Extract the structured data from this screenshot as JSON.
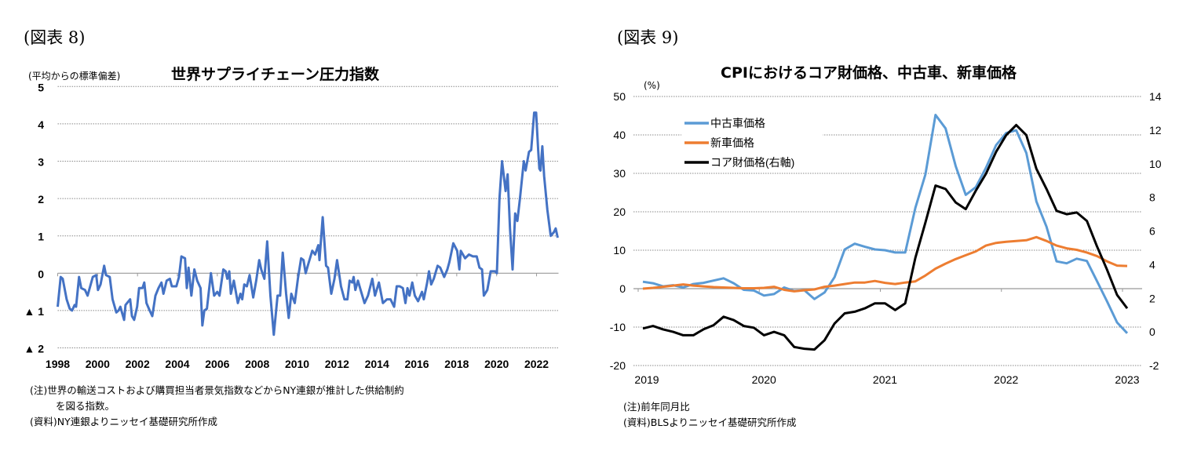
{
  "left": {
    "figure_label": "(図表 8)",
    "title": "世界サプライチェーン圧力指数",
    "unit": "(平均からの標準偏差)",
    "notes": [
      "(注)世界の輸送コストおよび購買担当者景気指数などからNY連銀が推計した供給制約",
      "を図る指数。",
      "(資料)NY連銀よりニッセイ基礎研究所作成"
    ]
  },
  "right": {
    "figure_label": "(図表 9)",
    "title": "CPIにおけるコア財価格、中古車、新車価格",
    "unit": "(%)",
    "notes": [
      "(注)前年同月比",
      "(資料)BLSよりニッセイ基礎研究所作成"
    ]
  },
  "chart_data": [
    {
      "type": "line",
      "title": "世界サプライチェーン圧力指数",
      "ylabel": "(平均からの標準偏差)",
      "ylim": [
        -2,
        5
      ],
      "yticks": [
        5,
        4,
        3,
        2,
        1,
        0,
        -1,
        -2
      ],
      "ytick_labels": [
        "5",
        "4",
        "3",
        "2",
        "1",
        "0",
        "▲ 1",
        "▲ 2"
      ],
      "xlim": [
        1998,
        2023.1
      ],
      "xticks": [
        1998,
        2000,
        2002,
        2004,
        2006,
        2008,
        2010,
        2012,
        2014,
        2016,
        2018,
        2020,
        2022
      ],
      "grid": true,
      "color": "#4472C4",
      "series": [
        {
          "points": [
            [
              1998.0,
              -0.9
            ],
            [
              1998.15,
              -0.1
            ],
            [
              1998.25,
              -0.15
            ],
            [
              1998.45,
              -0.7
            ],
            [
              1998.6,
              -0.95
            ],
            [
              1998.72,
              -1.0
            ],
            [
              1998.85,
              -0.85
            ],
            [
              1998.92,
              -0.9
            ],
            [
              1999.07,
              -0.1
            ],
            [
              1999.18,
              -0.4
            ],
            [
              1999.37,
              -0.45
            ],
            [
              1999.5,
              -0.6
            ],
            [
              1999.76,
              -0.1
            ],
            [
              1999.93,
              -0.05
            ],
            [
              2000.02,
              -0.45
            ],
            [
              2000.15,
              -0.3
            ],
            [
              2000.33,
              0.2
            ],
            [
              2000.42,
              -0.05
            ],
            [
              2000.61,
              -0.1
            ],
            [
              2000.75,
              -0.7
            ],
            [
              2000.94,
              -1.05
            ],
            [
              2001.05,
              -1.0
            ],
            [
              2001.14,
              -0.9
            ],
            [
              2001.33,
              -1.25
            ],
            [
              2001.4,
              -0.85
            ],
            [
              2001.63,
              -0.7
            ],
            [
              2001.72,
              -1.15
            ],
            [
              2001.83,
              -1.25
            ],
            [
              2001.98,
              -0.9
            ],
            [
              2002.08,
              -0.4
            ],
            [
              2002.25,
              -0.4
            ],
            [
              2002.34,
              -0.25
            ],
            [
              2002.45,
              -0.8
            ],
            [
              2002.61,
              -1.0
            ],
            [
              2002.74,
              -1.15
            ],
            [
              2002.9,
              -0.6
            ],
            [
              2003.05,
              -0.4
            ],
            [
              2003.2,
              -0.25
            ],
            [
              2003.3,
              -0.55
            ],
            [
              2003.46,
              -0.2
            ],
            [
              2003.62,
              -0.15
            ],
            [
              2003.72,
              -0.35
            ],
            [
              2003.95,
              -0.35
            ],
            [
              2004.08,
              -0.1
            ],
            [
              2004.2,
              0.45
            ],
            [
              2004.38,
              0.4
            ],
            [
              2004.47,
              -0.4
            ],
            [
              2004.56,
              0.15
            ],
            [
              2004.7,
              -0.6
            ],
            [
              2004.85,
              0.1
            ],
            [
              2004.99,
              -0.2
            ],
            [
              2005.16,
              -0.4
            ],
            [
              2005.25,
              -1.4
            ],
            [
              2005.35,
              -1.0
            ],
            [
              2005.48,
              -0.95
            ],
            [
              2005.68,
              0.0
            ],
            [
              2005.84,
              -0.6
            ],
            [
              2006.0,
              -0.5
            ],
            [
              2006.11,
              -0.6
            ],
            [
              2006.3,
              0.1
            ],
            [
              2006.42,
              0.05
            ],
            [
              2006.5,
              -0.15
            ],
            [
              2006.6,
              0.05
            ],
            [
              2006.68,
              -0.55
            ],
            [
              2006.83,
              -0.2
            ],
            [
              2007.03,
              -0.8
            ],
            [
              2007.16,
              -0.55
            ],
            [
              2007.25,
              -0.7
            ],
            [
              2007.35,
              -0.3
            ],
            [
              2007.48,
              -0.35
            ],
            [
              2007.62,
              -0.05
            ],
            [
              2007.8,
              -0.65
            ],
            [
              2007.95,
              -0.2
            ],
            [
              2008.1,
              0.35
            ],
            [
              2008.2,
              0.1
            ],
            [
              2008.36,
              -0.15
            ],
            [
              2008.5,
              0.85
            ],
            [
              2008.66,
              -0.6
            ],
            [
              2008.83,
              -1.65
            ],
            [
              2009.02,
              -0.6
            ],
            [
              2009.15,
              -0.6
            ],
            [
              2009.28,
              0.55
            ],
            [
              2009.45,
              -0.55
            ],
            [
              2009.58,
              -1.2
            ],
            [
              2009.71,
              -0.55
            ],
            [
              2009.88,
              -0.8
            ],
            [
              2010.04,
              -0.15
            ],
            [
              2010.2,
              0.4
            ],
            [
              2010.32,
              0.35
            ],
            [
              2010.43,
              0.0
            ],
            [
              2010.56,
              0.25
            ],
            [
              2010.76,
              0.6
            ],
            [
              2010.9,
              0.5
            ],
            [
              2011.06,
              0.75
            ],
            [
              2011.12,
              0.35
            ],
            [
              2011.28,
              1.5
            ],
            [
              2011.45,
              0.2
            ],
            [
              2011.55,
              0.15
            ],
            [
              2011.71,
              -0.55
            ],
            [
              2011.87,
              -0.15
            ],
            [
              2012.0,
              0.35
            ],
            [
              2012.2,
              -0.35
            ],
            [
              2012.37,
              -0.7
            ],
            [
              2012.52,
              -0.7
            ],
            [
              2012.63,
              -0.2
            ],
            [
              2012.76,
              -0.25
            ],
            [
              2012.83,
              -0.1
            ],
            [
              2012.92,
              -0.45
            ],
            [
              2013.05,
              -0.2
            ],
            [
              2013.18,
              -0.45
            ],
            [
              2013.38,
              -0.8
            ],
            [
              2013.55,
              -0.6
            ],
            [
              2013.77,
              -0.15
            ],
            [
              2013.9,
              -0.6
            ],
            [
              2014.1,
              -0.25
            ],
            [
              2014.3,
              -0.8
            ],
            [
              2014.5,
              -0.7
            ],
            [
              2014.68,
              -0.7
            ],
            [
              2014.86,
              -0.9
            ],
            [
              2014.99,
              -0.35
            ],
            [
              2015.14,
              -0.35
            ],
            [
              2015.3,
              -0.4
            ],
            [
              2015.43,
              -0.8
            ],
            [
              2015.53,
              -0.4
            ],
            [
              2015.63,
              -0.6
            ],
            [
              2015.77,
              -0.25
            ],
            [
              2015.9,
              -0.6
            ],
            [
              2016.06,
              -0.75
            ],
            [
              2016.26,
              -0.5
            ],
            [
              2016.35,
              -0.7
            ],
            [
              2016.52,
              -0.25
            ],
            [
              2016.61,
              0.05
            ],
            [
              2016.72,
              -0.3
            ],
            [
              2016.85,
              -0.15
            ],
            [
              2017.04,
              0.2
            ],
            [
              2017.17,
              0.15
            ],
            [
              2017.37,
              -0.1
            ],
            [
              2017.53,
              0.1
            ],
            [
              2017.63,
              0.3
            ],
            [
              2017.83,
              0.8
            ],
            [
              2018.02,
              0.6
            ],
            [
              2018.13,
              0.1
            ],
            [
              2018.2,
              0.6
            ],
            [
              2018.42,
              0.4
            ],
            [
              2018.61,
              0.5
            ],
            [
              2018.81,
              0.45
            ],
            [
              2019.0,
              0.45
            ],
            [
              2019.14,
              0.15
            ],
            [
              2019.27,
              0.1
            ],
            [
              2019.36,
              -0.6
            ],
            [
              2019.53,
              -0.45
            ],
            [
              2019.7,
              0.05
            ],
            [
              2019.92,
              0.05
            ],
            [
              2020.01,
              0.0
            ],
            [
              2020.14,
              2.0
            ],
            [
              2020.27,
              3.0
            ],
            [
              2020.45,
              2.2
            ],
            [
              2020.55,
              2.65
            ],
            [
              2020.67,
              1.2
            ],
            [
              2020.8,
              0.1
            ],
            [
              2020.93,
              1.6
            ],
            [
              2021.04,
              1.4
            ],
            [
              2021.17,
              2.0
            ],
            [
              2021.36,
              3.0
            ],
            [
              2021.45,
              2.75
            ],
            [
              2021.62,
              3.25
            ],
            [
              2021.73,
              3.3
            ],
            [
              2021.88,
              4.3
            ],
            [
              2021.98,
              4.3
            ],
            [
              2022.08,
              3.3
            ],
            [
              2022.14,
              2.8
            ],
            [
              2022.2,
              2.75
            ],
            [
              2022.29,
              3.4
            ],
            [
              2022.38,
              2.6
            ],
            [
              2022.54,
              1.7
            ],
            [
              2022.71,
              1.0
            ],
            [
              2022.87,
              1.1
            ],
            [
              2022.96,
              1.2
            ],
            [
              2023.06,
              0.95
            ]
          ]
        }
      ]
    },
    {
      "type": "line",
      "title": "CPIにおけるコア財価格、中古車、新車価格",
      "ylabel": "(%)",
      "ylim": [
        -20,
        50
      ],
      "yticks": [
        50,
        40,
        30,
        20,
        10,
        0,
        -10,
        -20
      ],
      "y2lim": [
        -2,
        14
      ],
      "y2ticks": [
        14,
        12,
        10,
        8,
        6,
        4,
        2,
        0,
        -2
      ],
      "xticks": [
        "2019",
        "2020",
        "2021",
        "2022",
        "2023"
      ],
      "grid": true,
      "legend": "top-left",
      "x": [
        "2019-01",
        "2019-02",
        "2019-03",
        "2019-04",
        "2019-05",
        "2019-06",
        "2019-07",
        "2019-08",
        "2019-09",
        "2019-10",
        "2019-11",
        "2019-12",
        "2020-01",
        "2020-02",
        "2020-03",
        "2020-04",
        "2020-05",
        "2020-06",
        "2020-07",
        "2020-08",
        "2020-09",
        "2020-10",
        "2020-11",
        "2020-12",
        "2021-01",
        "2021-02",
        "2021-03",
        "2021-04",
        "2021-05",
        "2021-06",
        "2021-07",
        "2021-08",
        "2021-09",
        "2021-10",
        "2021-11",
        "2021-12",
        "2022-01",
        "2022-02",
        "2022-03",
        "2022-04",
        "2022-05",
        "2022-06",
        "2022-07",
        "2022-08",
        "2022-09",
        "2022-10",
        "2022-11",
        "2022-12",
        "2023-01"
      ],
      "series": [
        {
          "name": "中古車価格",
          "axis": "left",
          "color": "#5B9BD5",
          "values": [
            1.8,
            1.4,
            0.6,
            0.9,
            0.3,
            1.2,
            1.5,
            2.1,
            2.7,
            1.4,
            -0.3,
            -0.5,
            -1.8,
            -1.4,
            0.3,
            -0.6,
            -0.4,
            -2.7,
            -1.0,
            3.0,
            10.2,
            11.7,
            10.9,
            10.2,
            10.0,
            9.4,
            9.4,
            21.0,
            29.7,
            45.2,
            41.7,
            31.9,
            24.4,
            26.4,
            31.4,
            37.3,
            40.5,
            41.2,
            35.3,
            22.7,
            16.1,
            7.1,
            6.6,
            7.8,
            7.2,
            2.0,
            -3.3,
            -8.8,
            -11.6
          ]
        },
        {
          "name": "新車価格",
          "axis": "left",
          "color": "#ED7D31",
          "values": [
            0.0,
            0.2,
            0.5,
            0.8,
            1.1,
            0.8,
            0.6,
            0.4,
            0.3,
            0.2,
            0.1,
            0.1,
            0.2,
            0.5,
            -0.3,
            -0.7,
            -0.4,
            -0.2,
            0.5,
            0.8,
            1.2,
            1.6,
            1.6,
            2.0,
            1.5,
            1.2,
            1.6,
            1.9,
            3.4,
            5.2,
            6.5,
            7.7,
            8.7,
            9.7,
            11.2,
            11.9,
            12.2,
            12.4,
            12.6,
            13.4,
            12.4,
            11.2,
            10.5,
            10.1,
            9.4,
            8.5,
            7.1,
            6.0,
            5.9
          ]
        },
        {
          "name": "コア財価格(右軸)",
          "axis": "right",
          "color": "#000000",
          "values": [
            0.2,
            0.35,
            0.15,
            0.0,
            -0.2,
            -0.2,
            0.15,
            0.4,
            0.9,
            0.7,
            0.35,
            0.25,
            -0.2,
            0.0,
            -0.2,
            -0.9,
            -1.0,
            -1.05,
            -0.5,
            0.5,
            1.1,
            1.2,
            1.4,
            1.7,
            1.7,
            1.3,
            1.7,
            4.4,
            6.5,
            8.7,
            8.5,
            7.7,
            7.3,
            8.4,
            9.4,
            10.7,
            11.7,
            12.3,
            11.7,
            9.7,
            8.5,
            7.2,
            7.0,
            7.1,
            6.6,
            5.1,
            3.7,
            2.2,
            1.4
          ]
        }
      ]
    }
  ]
}
